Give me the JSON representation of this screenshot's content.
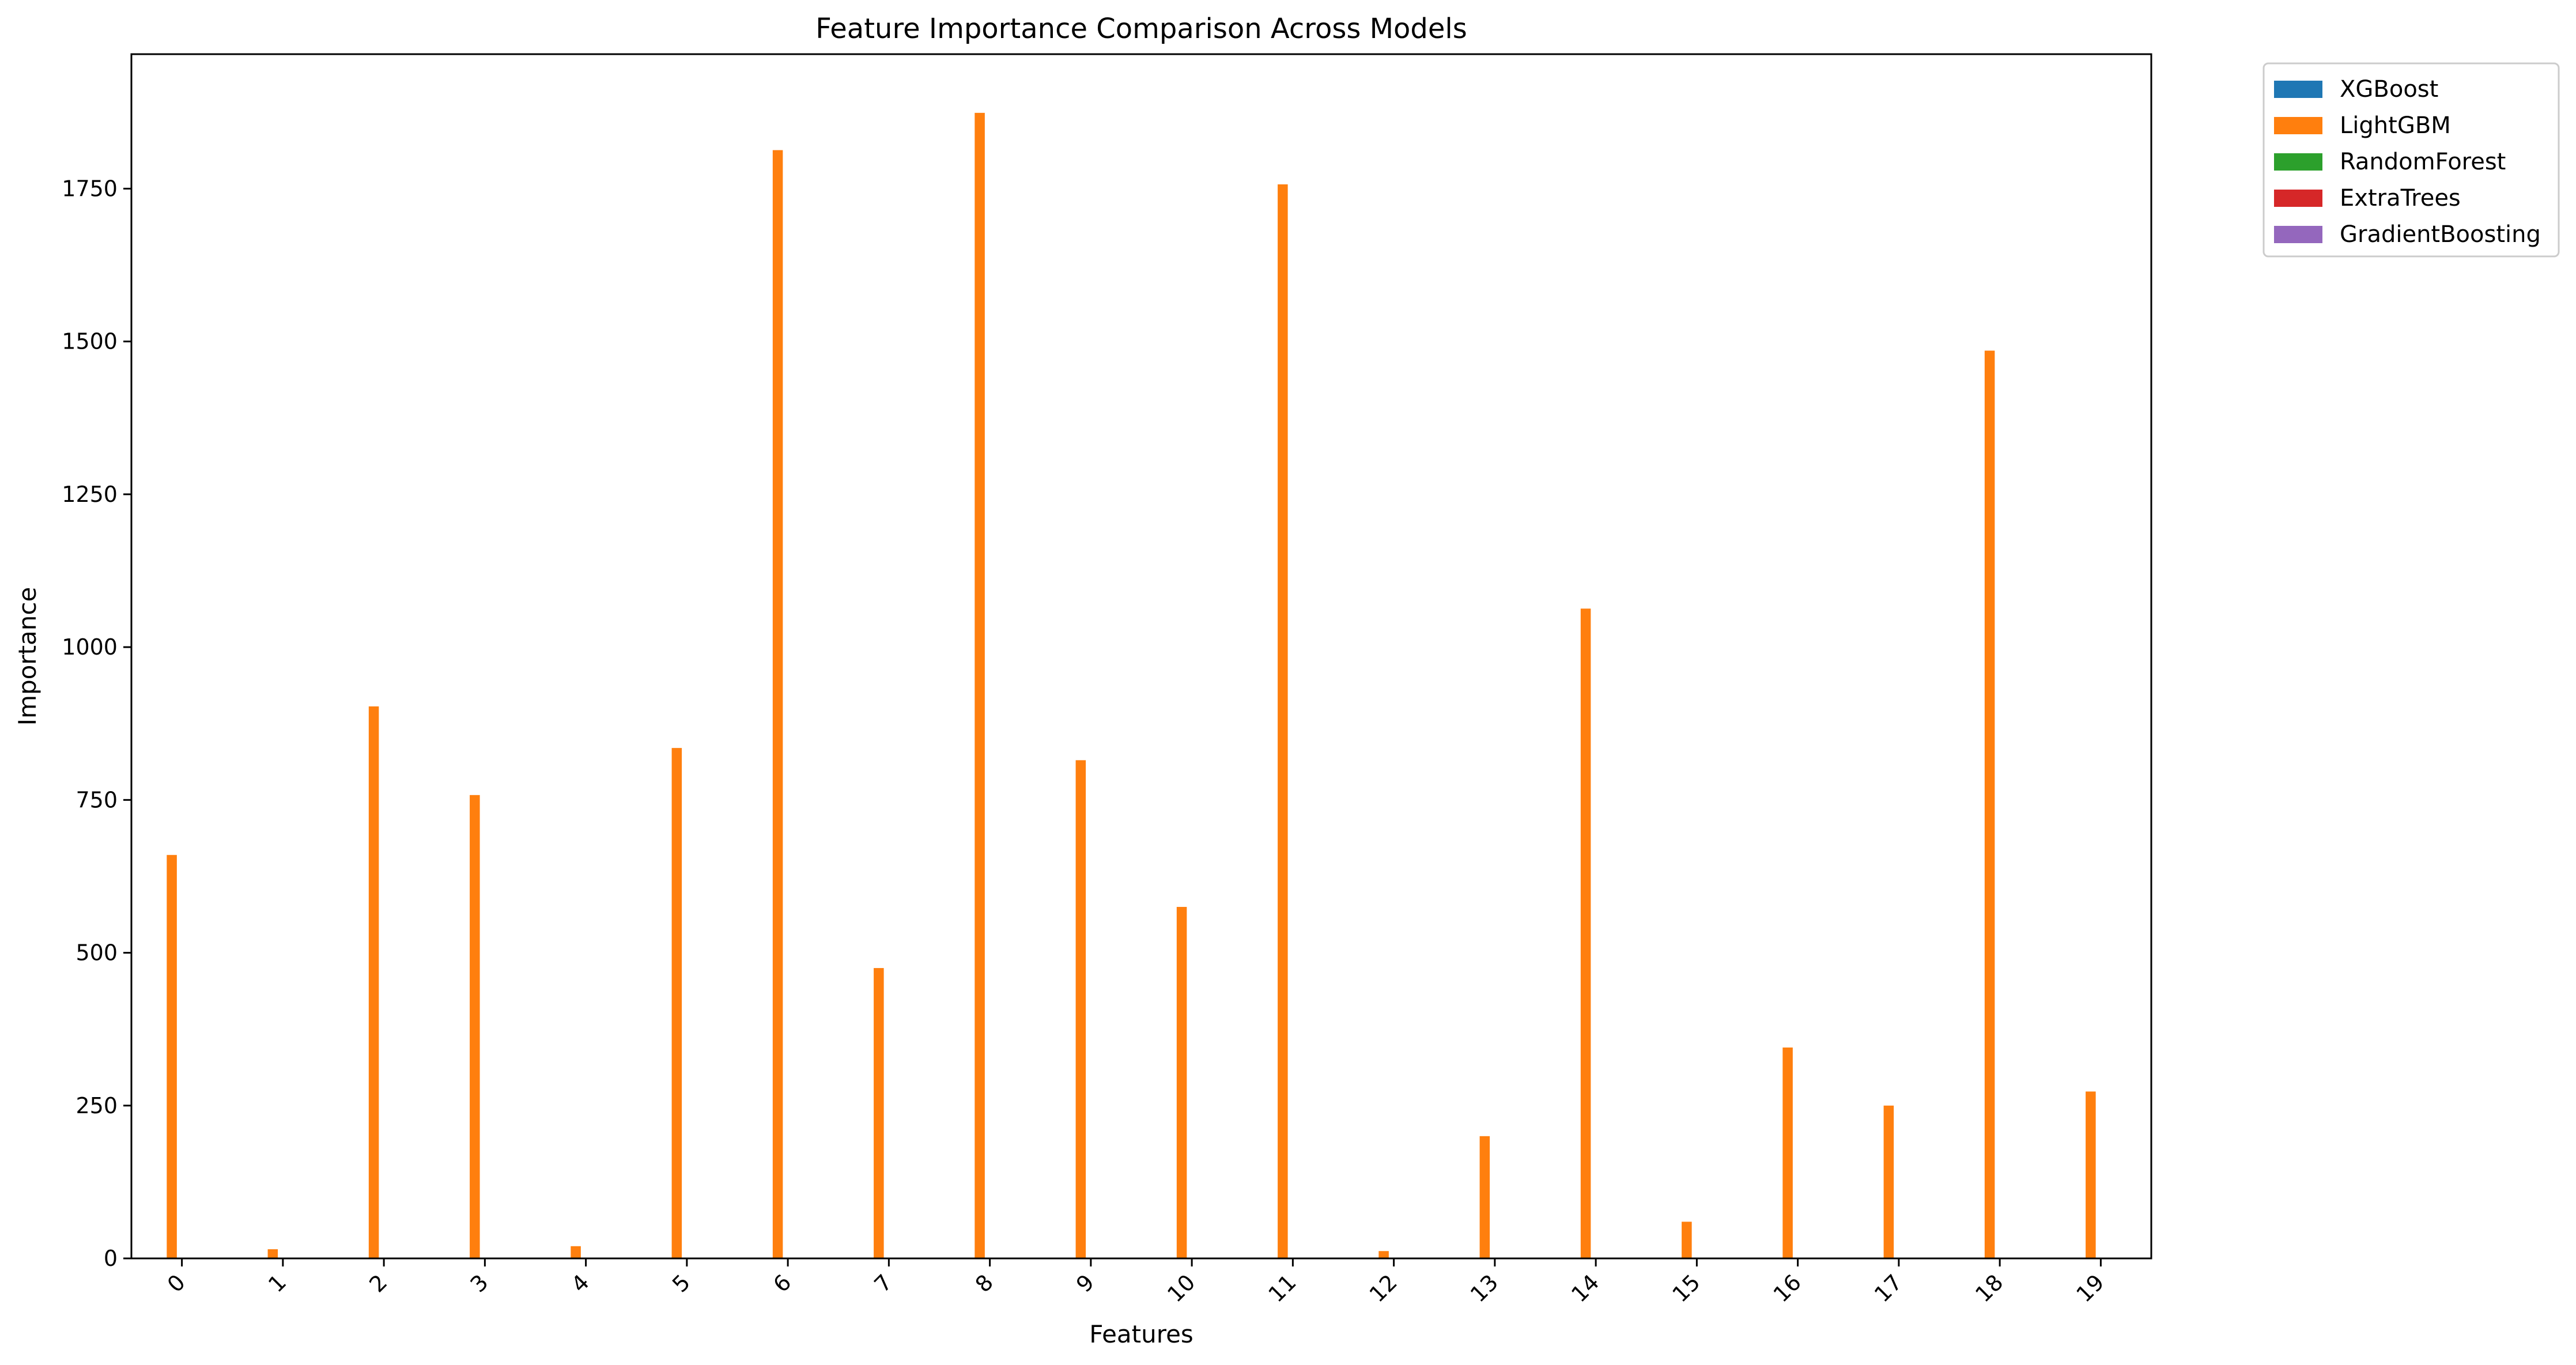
{
  "chart_data": {
    "type": "bar",
    "title": "Feature Importance Comparison Across Models",
    "xlabel": "Features",
    "ylabel": "Importance",
    "categories": [
      "0",
      "1",
      "2",
      "3",
      "4",
      "5",
      "6",
      "7",
      "8",
      "9",
      "10",
      "11",
      "12",
      "13",
      "14",
      "15",
      "16",
      "17",
      "18",
      "19"
    ],
    "ylim": [
      0,
      1970
    ],
    "yticks": [
      0,
      250,
      500,
      750,
      1000,
      1250,
      1500,
      1750
    ],
    "grid": false,
    "legend_position": "outside-top-right",
    "series": [
      {
        "name": "XGBoost",
        "color": "#1f77b4",
        "values": [
          0,
          0,
          0,
          0,
          0,
          0,
          0,
          0,
          0,
          0,
          0,
          0,
          0,
          0,
          0,
          0,
          0,
          0,
          0,
          0
        ]
      },
      {
        "name": "LightGBM",
        "color": "#ff7f0e",
        "values": [
          660,
          15,
          903,
          758,
          20,
          835,
          1813,
          475,
          1874,
          815,
          575,
          1757,
          12,
          200,
          1063,
          60,
          345,
          250,
          1485,
          273
        ]
      },
      {
        "name": "RandomForest",
        "color": "#2ca02c",
        "values": [
          0,
          0,
          0,
          0,
          0,
          0,
          0,
          0,
          0,
          0,
          0,
          0,
          0,
          0,
          0,
          0,
          0,
          0,
          0,
          0
        ]
      },
      {
        "name": "ExtraTrees",
        "color": "#d62728",
        "values": [
          0,
          0,
          0,
          0,
          0,
          0,
          0,
          0,
          0,
          0,
          0,
          0,
          0,
          0,
          0,
          0,
          0,
          0,
          0,
          0
        ]
      },
      {
        "name": "GradientBoosting",
        "color": "#9467bd",
        "values": [
          0,
          0,
          0,
          0,
          0,
          0,
          0,
          0,
          0,
          0,
          0,
          0,
          0,
          0,
          0,
          0,
          0,
          0,
          0,
          0
        ]
      }
    ]
  }
}
